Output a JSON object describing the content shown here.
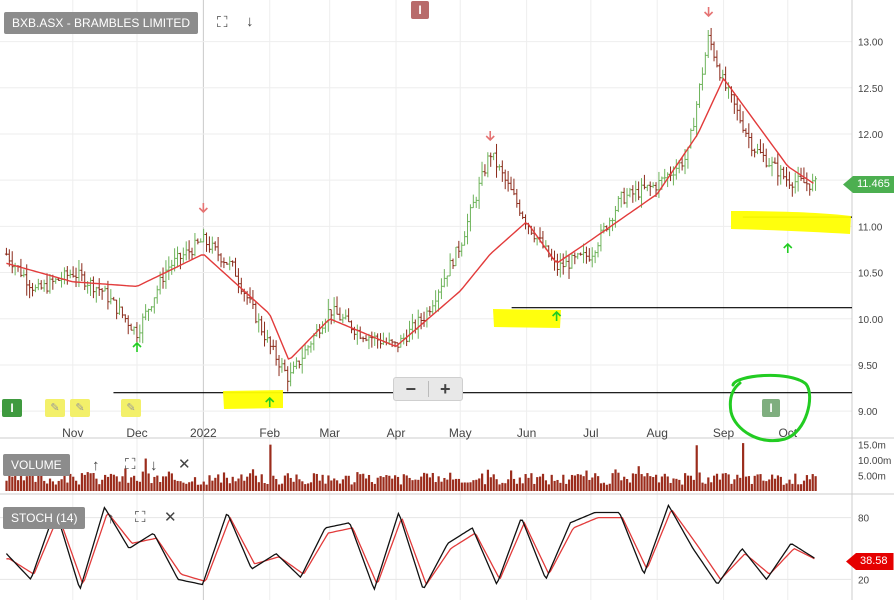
{
  "instrument": {
    "title": "BXB.ASX - BRAMBLES LIMITED",
    "expand_icon": "expand-icon",
    "download_icon": "arrow-down-icon"
  },
  "last_price_tag": "11.465",
  "stoch_value_tag": "38.58",
  "event_badge": "I",
  "zoom": {
    "minus": "−",
    "plus": "+"
  },
  "volume_panel": {
    "label": "VOLUME",
    "ticks": [
      "15.0m",
      "10.00m",
      "5.00m"
    ]
  },
  "stoch_panel": {
    "label": "STOCH (14)",
    "ticks": [
      "80",
      "20"
    ]
  },
  "colors": {
    "up_bar": "#6db35a",
    "down_bar": "#8b2a1a",
    "moving_average": "#e23b3b",
    "volume_bar": "#9b2c1c",
    "stoch_k": "#111111",
    "stoch_d": "#e23b3b",
    "highlight": "#ffff00",
    "circle": "#22cc22",
    "last_price": "#4caf50",
    "stoch_tag": "#e50000",
    "down_arrow": "#e57373",
    "up_arrow": "#22cc22"
  },
  "chart_data": [
    {
      "type": "line",
      "title": "BXB.ASX - BRAMBLES LIMITED",
      "x_tick_labels": [
        "Nov",
        "Dec",
        "2022",
        "Feb",
        "Mar",
        "Apr",
        "May",
        "Jun",
        "Jul",
        "Aug",
        "Sep",
        "Oct"
      ],
      "y_tick_labels": [
        "13.00",
        "12.50",
        "12.00",
        "11.50",
        "11.00",
        "10.50",
        "10.00",
        "9.50",
        "9.00"
      ],
      "ylim": [
        8.85,
        13.45
      ],
      "grid": true,
      "series_close_anchors": {
        "x": [
          "2021-10-01",
          "2021-10-15",
          "2021-11-01",
          "2021-11-15",
          "2021-12-01",
          "2021-12-15",
          "2022-01-01",
          "2022-01-15",
          "2022-02-01",
          "2022-02-10",
          "2022-03-01",
          "2022-03-15",
          "2022-04-01",
          "2022-04-15",
          "2022-05-01",
          "2022-05-15",
          "2022-06-01",
          "2022-06-15",
          "2022-07-01",
          "2022-07-15",
          "2022-08-01",
          "2022-08-15",
          "2022-08-25",
          "2022-09-01",
          "2022-09-15",
          "2022-10-01",
          "2022-10-14"
        ],
        "close": [
          10.7,
          10.3,
          10.5,
          10.3,
          9.85,
          10.55,
          10.85,
          10.55,
          9.7,
          9.35,
          10.1,
          9.85,
          9.7,
          10.05,
          10.8,
          11.8,
          11.05,
          10.55,
          10.7,
          11.3,
          11.45,
          11.75,
          13.05,
          12.55,
          11.85,
          11.5,
          11.45
        ]
      },
      "moving_average_anchors": {
        "x": [
          "2021-10-01",
          "2021-11-01",
          "2021-12-01",
          "2022-01-01",
          "2022-02-01",
          "2022-02-10",
          "2022-03-01",
          "2022-04-01",
          "2022-05-01",
          "2022-05-15",
          "2022-06-01",
          "2022-06-15",
          "2022-07-01",
          "2022-08-01",
          "2022-08-20",
          "2022-09-01",
          "2022-10-01",
          "2022-10-14"
        ],
        "value": [
          10.6,
          10.4,
          10.35,
          10.7,
          10.05,
          9.55,
          10.0,
          9.7,
          10.3,
          10.7,
          11.05,
          10.6,
          10.85,
          11.35,
          12.0,
          12.6,
          11.65,
          11.45
        ]
      },
      "signals_down": [
        "2022-01-01",
        "2022-05-15",
        "2022-08-25"
      ],
      "signals_up": [
        "2021-12-01",
        "2022-02-01",
        "2022-06-15",
        "2022-10-01"
      ],
      "horizontal_lines": [
        9.2,
        10.12,
        11.1
      ],
      "last_price": 11.465
    },
    {
      "type": "bar",
      "title": "VOLUME",
      "y_tick_labels": [
        "15.0m",
        "10.00m",
        "5.00m"
      ],
      "ylim": [
        0,
        16.5
      ],
      "unit": "millions",
      "spikes": [
        {
          "x": "2021-12-05",
          "value": 10.5
        },
        {
          "x": "2022-02-01",
          "value": 15.0
        },
        {
          "x": "2022-08-20",
          "value": 14.8
        },
        {
          "x": "2022-09-10",
          "value": 15.5
        }
      ],
      "typical_range": [
        2.0,
        6.0
      ]
    },
    {
      "type": "line",
      "title": "STOCH (14)",
      "y_tick_labels": [
        "80",
        "20"
      ],
      "ylim": [
        0,
        100
      ],
      "series": [
        {
          "values_k_anchors": [
            45,
            20,
            88,
            10,
            90,
            50,
            65,
            20,
            15,
            85,
            30,
            45,
            22,
            70,
            75,
            10,
            85,
            10,
            55,
            70,
            15,
            80,
            20,
            75,
            85,
            85,
            25,
            92,
            50,
            15,
            50,
            20,
            55,
            40
          ]
        },
        {
          "values_d_anchors": [
            40,
            25,
            82,
            15,
            85,
            55,
            60,
            25,
            18,
            80,
            35,
            42,
            25,
            65,
            70,
            15,
            80,
            15,
            50,
            65,
            20,
            75,
            25,
            70,
            80,
            80,
            30,
            88,
            55,
            20,
            45,
            25,
            50,
            38
          ]
        }
      ],
      "last_value": 38.58
    }
  ]
}
